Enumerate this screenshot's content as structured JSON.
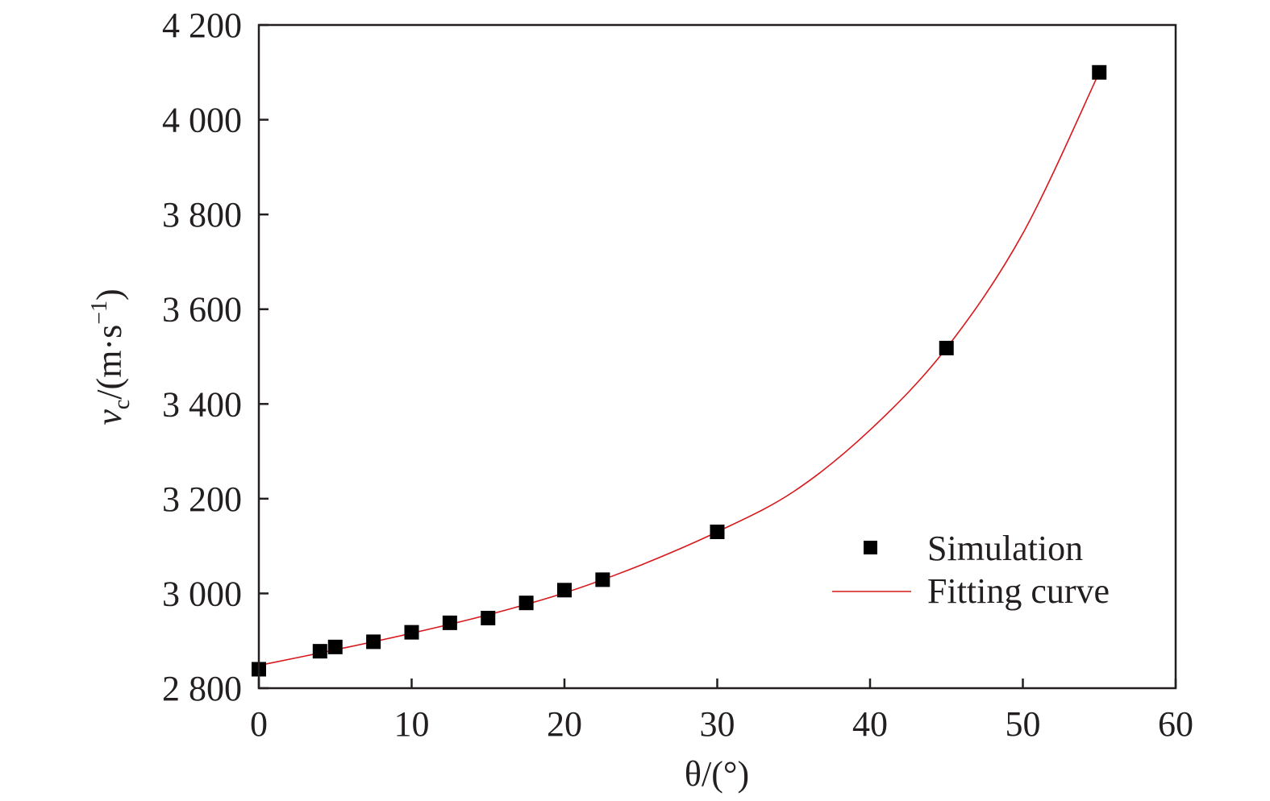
{
  "chart_data": {
    "type": "scatter",
    "title": "",
    "xlabel": "θ/(°)",
    "ylabel": {
      "var": "v",
      "sub": "c",
      "unit": "/(m·s",
      "sup": "−1",
      "close": ")"
    },
    "xlim": [
      0,
      60
    ],
    "ylim": [
      2800,
      4200
    ],
    "x_ticks": [
      "0",
      "10",
      "20",
      "30",
      "40",
      "50",
      "60"
    ],
    "y_ticks": [
      "2 800",
      "3 000",
      "3 200",
      "3 400",
      "3 600",
      "3 800",
      "4 000",
      "4 200"
    ],
    "grid": false,
    "legend_position": "bottom-right",
    "series": [
      {
        "name": "Simulation",
        "kind": "scatter",
        "marker": "square",
        "color": "#000000",
        "points": [
          {
            "x": 0,
            "y": 2840
          },
          {
            "x": 4,
            "y": 2878
          },
          {
            "x": 5,
            "y": 2887
          },
          {
            "x": 7.5,
            "y": 2898
          },
          {
            "x": 10,
            "y": 2918
          },
          {
            "x": 12.5,
            "y": 2938
          },
          {
            "x": 15,
            "y": 2948
          },
          {
            "x": 17.5,
            "y": 2980
          },
          {
            "x": 20,
            "y": 3007
          },
          {
            "x": 22.5,
            "y": 3029
          },
          {
            "x": 30,
            "y": 3130
          },
          {
            "x": 45,
            "y": 3518
          },
          {
            "x": 55,
            "y": 4100
          }
        ]
      },
      {
        "name": "Fitting curve",
        "kind": "line",
        "color": "#d7191c",
        "points": [
          {
            "x": 0,
            "y": 2848
          },
          {
            "x": 5,
            "y": 2881
          },
          {
            "x": 10,
            "y": 2916
          },
          {
            "x": 15,
            "y": 2955
          },
          {
            "x": 20,
            "y": 3001
          },
          {
            "x": 25,
            "y": 3060
          },
          {
            "x": 30,
            "y": 3130
          },
          {
            "x": 35,
            "y": 3215
          },
          {
            "x": 40,
            "y": 3345
          },
          {
            "x": 45,
            "y": 3518
          },
          {
            "x": 50,
            "y": 3760
          },
          {
            "x": 55,
            "y": 4100
          }
        ]
      }
    ]
  }
}
